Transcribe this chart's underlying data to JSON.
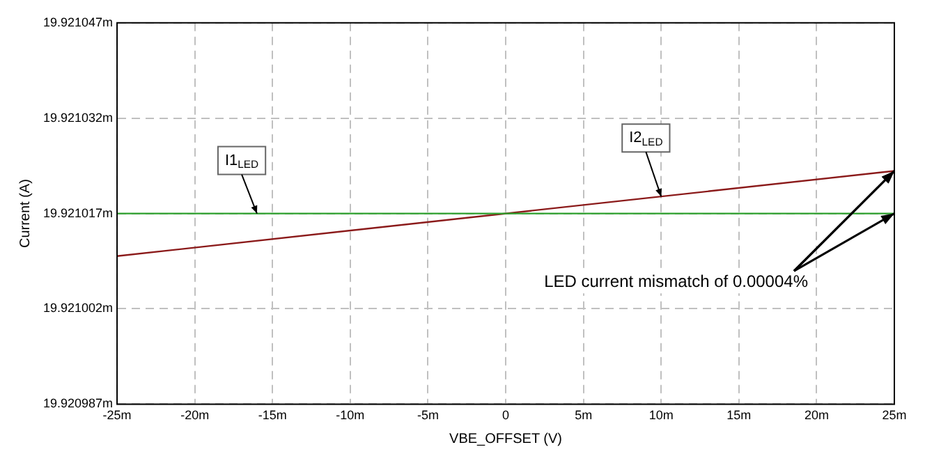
{
  "chart_data": {
    "type": "line",
    "xlabel": "VBE_OFFSET (V)",
    "ylabel": "Current (A)",
    "x": [
      -25,
      25
    ],
    "series": [
      {
        "name": "I1$_{LED}$",
        "color": "#2ca02c",
        "values": [
          19.921017,
          19.921017
        ]
      },
      {
        "name": "I2$_{LED}$",
        "color": "#8b1a1a",
        "values": [
          19.9210103,
          19.9210237
        ]
      }
    ],
    "xlim": [
      -25,
      25
    ],
    "xticks": [
      {
        "value": -25,
        "label": "-25m"
      },
      {
        "value": -20,
        "label": "-20m"
      },
      {
        "value": -15,
        "label": "-15m"
      },
      {
        "value": -10,
        "label": "-10m"
      },
      {
        "value": -5,
        "label": "-5m"
      },
      0,
      {
        "value": 5,
        "label": "5m"
      },
      {
        "value": 10,
        "label": "10m"
      },
      {
        "value": 15,
        "label": "15m"
      },
      {
        "value": 20,
        "label": "20m"
      },
      {
        "value": 25,
        "label": "25m"
      }
    ],
    "ylim": [
      19.920987,
      19.921047
    ],
    "yticks": [
      {
        "value": 19.920987,
        "label": "19.920987m"
      },
      {
        "value": 19.921002,
        "label": "19.921002m"
      },
      {
        "value": 19.921017,
        "label": "19.921017m"
      },
      {
        "value": 19.921032,
        "label": "19.921032m"
      },
      {
        "value": 19.921047,
        "label": "19.921047m"
      }
    ],
    "annotations": [
      {
        "text": "LED current mismatch of 0.00004%",
        "x": 25,
        "y": 19.9210237
      }
    ],
    "grid": true,
    "legend": false,
    "marker": "none",
    "line_style": "solid"
  }
}
